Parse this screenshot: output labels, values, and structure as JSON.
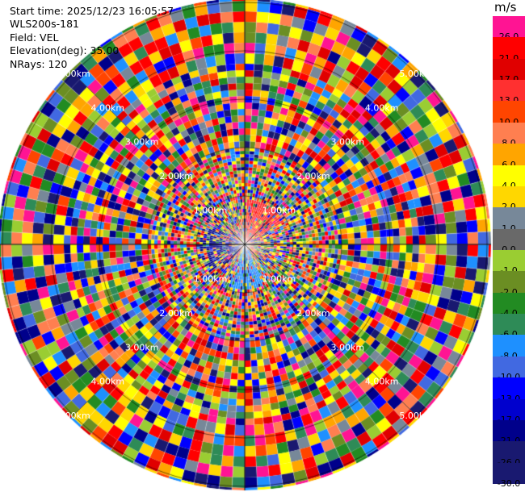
{
  "info": {
    "start_time": "Start time: 2025/12/23 16:05:57",
    "instrument": "WLS200s-181",
    "field": "Field: VEL",
    "elevation": "Elevation(deg): 35.00",
    "nrays": "NRays: 120"
  },
  "colorbar": {
    "unit": "m/s",
    "levels": [
      {
        "label": "26.0",
        "color": "#ff1493"
      },
      {
        "label": "21.0",
        "color": "#ff0000"
      },
      {
        "label": "17.0",
        "color": "#e00000"
      },
      {
        "label": "13.0",
        "color": "#ff3030"
      },
      {
        "label": "10.0",
        "color": "#ff4500"
      },
      {
        "label": "8.0",
        "color": "#ff7f50"
      },
      {
        "label": "6.0",
        "color": "#ffa500"
      },
      {
        "label": "4.0",
        "color": "#ffff00"
      },
      {
        "label": "2.0",
        "color": "#ffd700"
      },
      {
        "label": "1.0",
        "color": "#778899"
      },
      {
        "label": "0.0",
        "color": "#696969"
      },
      {
        "label": "-1.0",
        "color": "#9acd32"
      },
      {
        "label": "-2.0",
        "color": "#6b8e23"
      },
      {
        "label": "-4.0",
        "color": "#228b22"
      },
      {
        "label": "-6.0",
        "color": "#2e8b57"
      },
      {
        "label": "-8.0",
        "color": "#1e90ff"
      },
      {
        "label": "-10.0",
        "color": "#4169e1"
      },
      {
        "label": "-13.0",
        "color": "#0000ff"
      },
      {
        "label": "-17.0",
        "color": "#0000cd"
      },
      {
        "label": "-21.0",
        "color": "#00008b"
      },
      {
        "label": "-26.0",
        "color": "#191970"
      },
      {
        "label": "-30.0",
        "color": "#191970"
      }
    ]
  },
  "range_rings": [
    {
      "label": "1.00km"
    },
    {
      "label": "2.00km"
    },
    {
      "label": "3.00km"
    },
    {
      "label": "4.00km"
    },
    {
      "label": "5.00km"
    }
  ],
  "palette_cycle": [
    "#ff1493",
    "#ff0000",
    "#0000ff",
    "#00008b",
    "#ffff00",
    "#ff7f50",
    "#ffa500",
    "#228b22",
    "#6b8e23",
    "#9acd32",
    "#1e90ff",
    "#4169e1",
    "#191970",
    "#ff4500",
    "#ffd700",
    "#778899",
    "#2e8b57",
    "#e00000"
  ]
}
